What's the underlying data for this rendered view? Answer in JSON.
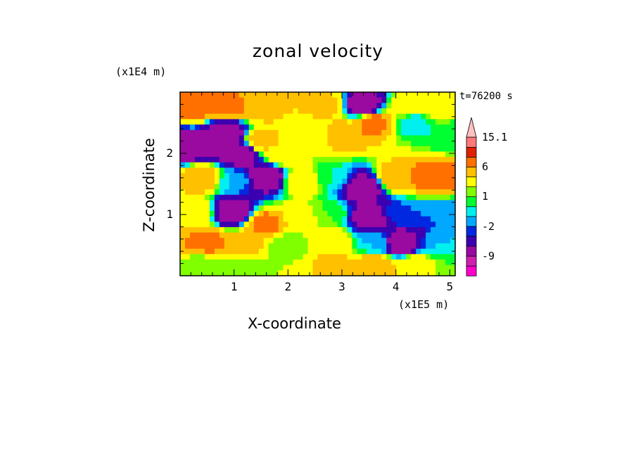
{
  "chart_data": {
    "type": "heatmap",
    "title": "zonal velocity",
    "xlabel": "X-coordinate",
    "ylabel": "Z-coordinate",
    "x_units": "(x1E5 m)",
    "y_units": "(x1E4 m)",
    "time_label": "t=76200 s",
    "xlim": [
      0,
      5.1
    ],
    "ylim": [
      0,
      3.0
    ],
    "x_ticks": [
      1,
      2,
      3,
      4,
      5
    ],
    "x_tick_labels": [
      "1",
      "2",
      "3",
      "4",
      "5"
    ],
    "y_ticks": [
      1,
      2
    ],
    "y_tick_labels": [
      "1",
      "2"
    ],
    "colorbar": {
      "levels": [
        -12,
        -9,
        -6,
        -3,
        -2,
        -1,
        0,
        1,
        2,
        4,
        6,
        8,
        11,
        15.1
      ],
      "labels": [
        "15.1",
        "6",
        "1",
        "-2",
        "-9"
      ],
      "label_values": [
        15.1,
        6,
        1,
        -2,
        -9
      ],
      "colors": [
        "#ff00cc",
        "#d020b0",
        "#9a0aa0",
        "#3c00b0",
        "#0028e0",
        "#00a8ff",
        "#00f0f0",
        "#00ff30",
        "#80ff00",
        "#ffff00",
        "#ffc000",
        "#ff7000",
        "#e02000",
        "#ff7878",
        "#ffc0c0"
      ]
    },
    "pattern": [
      {
        "x": 0.3,
        "z": 2.75,
        "u": 7
      },
      {
        "x": 0.9,
        "z": 2.75,
        "u": 7
      },
      {
        "x": 1.5,
        "z": 2.75,
        "u": 5
      },
      {
        "x": 2.1,
        "z": 2.75,
        "u": 4
      },
      {
        "x": 2.7,
        "z": 2.8,
        "u": 5
      },
      {
        "x": 3.4,
        "z": 2.8,
        "u": -9
      },
      {
        "x": 4.2,
        "z": 2.75,
        "u": 4
      },
      {
        "x": 4.8,
        "z": 2.75,
        "u": 3
      },
      {
        "x": 0.15,
        "z": 2.1,
        "u": -9
      },
      {
        "x": 0.85,
        "z": 2.35,
        "u": -9
      },
      {
        "x": 1.1,
        "z": 2.0,
        "u": -9
      },
      {
        "x": 1.5,
        "z": 2.2,
        "u": 5
      },
      {
        "x": 1.9,
        "z": 2.0,
        "u": 4
      },
      {
        "x": 2.5,
        "z": 2.3,
        "u": 2
      },
      {
        "x": 3.0,
        "z": 2.3,
        "u": 6
      },
      {
        "x": 3.6,
        "z": 2.5,
        "u": 7
      },
      {
        "x": 4.3,
        "z": 2.5,
        "u": -1
      },
      {
        "x": 4.9,
        "z": 2.3,
        "u": 0
      },
      {
        "x": 0.4,
        "z": 1.6,
        "u": 6
      },
      {
        "x": 1.0,
        "z": 1.55,
        "u": -1
      },
      {
        "x": 1.6,
        "z": 1.6,
        "u": -9
      },
      {
        "x": 2.25,
        "z": 1.55,
        "u": 4
      },
      {
        "x": 2.8,
        "z": 1.6,
        "u": 0
      },
      {
        "x": 3.4,
        "z": 1.45,
        "u": -9
      },
      {
        "x": 4.0,
        "z": 1.6,
        "u": 6
      },
      {
        "x": 4.7,
        "z": 1.6,
        "u": 8
      },
      {
        "x": 0.3,
        "z": 1.05,
        "u": 4
      },
      {
        "x": 0.95,
        "z": 1.05,
        "u": -9
      },
      {
        "x": 1.6,
        "z": 0.85,
        "u": 7
      },
      {
        "x": 2.2,
        "z": 0.95,
        "u": 3
      },
      {
        "x": 2.8,
        "z": 1.0,
        "u": 1
      },
      {
        "x": 3.5,
        "z": 0.95,
        "u": -9
      },
      {
        "x": 4.1,
        "z": 1.0,
        "u": -2
      },
      {
        "x": 4.8,
        "z": 1.0,
        "u": -2
      },
      {
        "x": 0.5,
        "z": 0.55,
        "u": 7
      },
      {
        "x": 1.2,
        "z": 0.5,
        "u": 5
      },
      {
        "x": 2.0,
        "z": 0.5,
        "u": 1
      },
      {
        "x": 2.8,
        "z": 0.6,
        "u": 4
      },
      {
        "x": 3.6,
        "z": 0.55,
        "u": -1
      },
      {
        "x": 4.1,
        "z": 0.55,
        "u": -9
      },
      {
        "x": 4.8,
        "z": 0.5,
        "u": -1
      },
      {
        "x": 0.4,
        "z": 0.15,
        "u": 1
      },
      {
        "x": 1.2,
        "z": 0.15,
        "u": 1
      },
      {
        "x": 2.0,
        "z": 0.15,
        "u": 2
      },
      {
        "x": 2.8,
        "z": 0.15,
        "u": 5
      },
      {
        "x": 3.6,
        "z": 0.15,
        "u": 6
      },
      {
        "x": 4.4,
        "z": 0.15,
        "u": 4
      },
      {
        "x": 5.0,
        "z": 0.15,
        "u": 1
      }
    ]
  }
}
